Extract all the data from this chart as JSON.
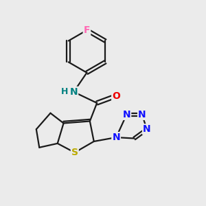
{
  "bg_color": "#ebebeb",
  "bond_color": "#1a1a1a",
  "bond_width": 1.6,
  "atom_colors": {
    "F": "#ff69b4",
    "N": "#1010ff",
    "N_amide": "#008080",
    "O": "#ee0000",
    "S": "#bbaa00",
    "H": "#008080",
    "C": "#1a1a1a"
  },
  "font_size": 10,
  "fig_size": [
    3.0,
    3.0
  ],
  "dpi": 100
}
